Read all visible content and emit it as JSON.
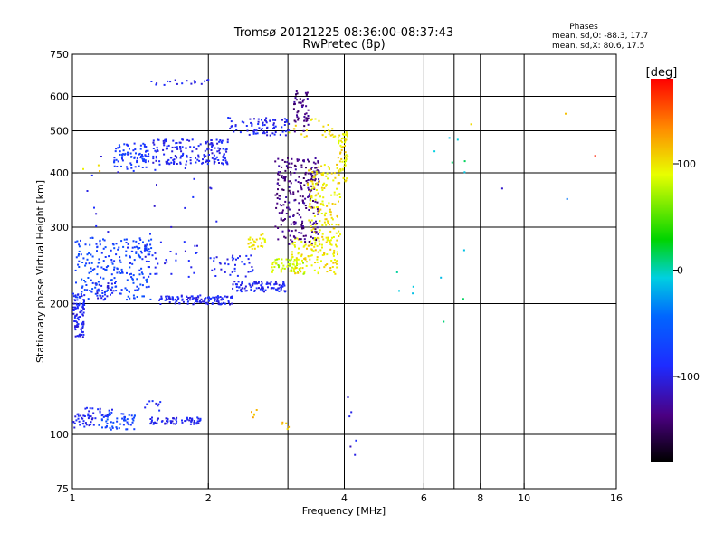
{
  "chart_data": [
    {
      "type": "scatter",
      "title": "Tromsø 20121225 08:36:00-08:37:43",
      "subtitle": "RwPretec (8p)",
      "xlabel": "Frequency [MHz]",
      "ylabel": "Stationary phase Virtual Height [km]",
      "x_scale": "log",
      "y_scale": "log",
      "xlim": [
        1,
        16
      ],
      "ylim": [
        75,
        750
      ],
      "x_ticks": [
        1,
        2,
        4,
        6,
        8,
        10,
        16
      ],
      "x_tick_labels": [
        "1",
        "2",
        "4",
        "6",
        "8",
        "10",
        "16"
      ],
      "y_ticks": [
        75,
        100,
        200,
        300,
        400,
        500,
        600,
        750
      ],
      "y_tick_labels": [
        "75",
        "100",
        "200",
        "300",
        "400",
        "500",
        "600",
        "750"
      ],
      "x_grid": [
        1,
        2,
        3,
        4,
        6,
        7,
        8,
        10,
        16
      ],
      "y_grid": [
        100,
        200,
        300,
        400,
        500,
        600
      ],
      "grid": true,
      "stats": {
        "title": "Phases",
        "line_o": "mean, sd,O: -88.3, 17.7",
        "line_x": "mean, sd,X:  80.6, 17.5"
      },
      "color_scale": "rainbow (black-purple-blue-cyan-green-yellow-red)",
      "series": [
        {
          "points": [
            {
              "f": 1.02,
              "h": 108,
              "phase": -95,
              "n": 55,
              "df": 0.1,
              "dh": 4
            },
            {
              "f": 1.25,
              "h": 108,
              "phase": -70,
              "n": 55,
              "df": 0.12,
              "dh": 5
            },
            {
              "f": 1.7,
              "h": 108,
              "phase": -95,
              "n": 70,
              "df": 0.22,
              "dh": 2
            },
            {
              "f": 1.12,
              "h": 113,
              "phase": -92,
              "n": 20,
              "df": 0.1,
              "dh": 3
            },
            {
              "f": 1.5,
              "h": 117,
              "phase": -95,
              "n": 10,
              "df": 0.06,
              "dh": 3
            },
            {
              "f": 2.5,
              "h": 112,
              "phase": 110,
              "n": 5,
              "df": 0.06,
              "dh": 3
            },
            {
              "f": 2.95,
              "h": 106,
              "phase": 110,
              "n": 5,
              "df": 0.06,
              "dh": 3
            },
            {
              "f": 1.02,
              "h": 190,
              "phase": -95,
              "n": 130,
              "df": 0.04,
              "dh": 22
            },
            {
              "f": 1.18,
              "h": 215,
              "phase": -100,
              "n": 30,
              "df": 0.06,
              "dh": 10
            },
            {
              "f": 1.25,
              "h": 245,
              "phase": -70,
              "n": 230,
              "df": 0.24,
              "dh": 40
            },
            {
              "f": 1.9,
              "h": 205,
              "phase": -95,
              "n": 120,
              "df": 0.35,
              "dh": 5
            },
            {
              "f": 2.6,
              "h": 220,
              "phase": -95,
              "n": 90,
              "df": 0.35,
              "dh": 6
            },
            {
              "f": 2.25,
              "h": 245,
              "phase": -95,
              "n": 40,
              "df": 0.25,
              "dh": 15
            },
            {
              "f": 1.6,
              "h": 255,
              "phase": -95,
              "n": 40,
              "df": 0.3,
              "dh": 25
            },
            {
              "f": 3.0,
              "h": 245,
              "phase": 80,
              "n": 60,
              "df": 0.25,
              "dh": 10
            },
            {
              "f": 3.45,
              "h": 260,
              "phase": 100,
              "n": 110,
              "df": 0.4,
              "dh": 25
            },
            {
              "f": 2.55,
              "h": 280,
              "phase": 100,
              "n": 30,
              "df": 0.12,
              "dh": 12
            },
            {
              "f": 3.15,
              "h": 355,
              "phase": -135,
              "n": 240,
              "df": 0.35,
              "dh": 80
            },
            {
              "f": 3.2,
              "h": 560,
              "phase": -135,
              "n": 50,
              "df": 0.12,
              "dh": 60
            },
            {
              "f": 3.6,
              "h": 350,
              "phase": 100,
              "n": 140,
              "df": 0.3,
              "dh": 70
            },
            {
              "f": 3.95,
              "h": 440,
              "phase": 100,
              "n": 60,
              "df": 0.1,
              "dh": 60
            },
            {
              "f": 3.4,
              "h": 510,
              "phase": 100,
              "n": 25,
              "df": 0.4,
              "dh": 25
            },
            {
              "f": 2.6,
              "h": 515,
              "phase": -95,
              "n": 80,
              "df": 0.4,
              "dh": 25
            },
            {
              "f": 1.85,
              "h": 450,
              "phase": -95,
              "n": 180,
              "df": 0.35,
              "dh": 30
            },
            {
              "f": 1.35,
              "h": 440,
              "phase": -80,
              "n": 80,
              "df": 0.12,
              "dh": 30
            },
            {
              "f": 1.7,
              "h": 650,
              "phase": -100,
              "n": 18,
              "df": 0.3,
              "dh": 10
            },
            {
              "f": 1.25,
              "h": 360,
              "phase": -95,
              "n": 15,
              "df": 0.3,
              "dh": 80
            },
            {
              "f": 1.8,
              "h": 360,
              "phase": -95,
              "n": 10,
              "df": 0.3,
              "dh": 60
            },
            {
              "f": 4.15,
              "h": 105,
              "phase": -100,
              "n": 6,
              "df": 0.1,
              "dh": 20
            },
            {
              "f": 6.3,
              "h": 340,
              "phase": 0,
              "n": 14,
              "df": 1.2,
              "dh": 160
            },
            {
              "f": 8.9,
              "h": 370,
              "phase": -100,
              "n": 1,
              "df": 0.0,
              "dh": 0
            },
            {
              "f": 12.3,
              "h": 550,
              "phase": 120,
              "n": 1,
              "df": 0.0,
              "dh": 0
            },
            {
              "f": 12.4,
              "h": 350,
              "phase": -50,
              "n": 1,
              "df": 0.0,
              "dh": 0
            },
            {
              "f": 14.3,
              "h": 440,
              "phase": 170,
              "n": 1,
              "df": 0.0,
              "dh": 0
            },
            {
              "f": 7.6,
              "h": 520,
              "phase": 110,
              "n": 1,
              "df": 0.0,
              "dh": 0
            },
            {
              "f": 1.1,
              "h": 415,
              "phase": 110,
              "n": 3,
              "df": 0.05,
              "dh": 15
            }
          ]
        }
      ]
    },
    {
      "type": "heatmap",
      "title": "[deg]",
      "ticks": [
        100,
        0,
        -100
      ],
      "tick_labels": [
        "100",
        "0",
        "-100"
      ],
      "range": [
        -180,
        180
      ]
    }
  ]
}
